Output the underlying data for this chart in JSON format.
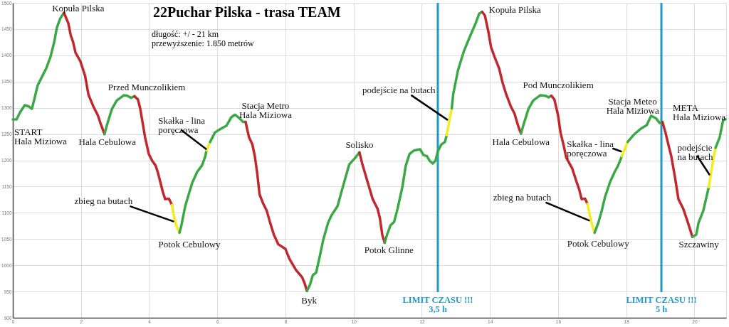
{
  "chart_data": {
    "type": "line",
    "title": "22Puchar Pilska - trasa TEAM",
    "subtitle": "długość: +/ - 21 km\nprzewyższenie: 1.850 metrów",
    "xlim": [
      0,
      20.93
    ],
    "xticks": [
      0,
      2,
      4,
      6,
      8,
      10,
      12,
      14,
      16,
      18,
      20
    ],
    "ylim": [
      900,
      1500
    ],
    "yticks": [
      900,
      950,
      1000,
      1050,
      1100,
      1150,
      1200,
      1250,
      1300,
      1350,
      1400,
      1450,
      1500
    ],
    "grid": true,
    "series": [
      {
        "color": "#3aa845",
        "x": [
          0,
          0.11,
          0.21,
          0.35,
          0.46,
          0.56,
          0.63,
          0.73,
          0.87,
          0.98,
          1.11,
          1.22,
          1.29,
          1.39,
          1.5
        ],
        "values": [
          1278,
          1278,
          1291,
          1305,
          1303,
          1298,
          1316,
          1343,
          1361,
          1375,
          1398,
          1427,
          1452,
          1470,
          1481
        ]
      },
      {
        "color": "#c1272d",
        "x": [
          1.5,
          1.63,
          1.7,
          1.77,
          1.84,
          1.98,
          2.12,
          2.22,
          2.36,
          2.5,
          2.57,
          2.69
        ],
        "values": [
          1481,
          1461,
          1438,
          1425,
          1405,
          1389,
          1361,
          1325,
          1303,
          1285,
          1271,
          1250
        ]
      },
      {
        "color": "#3aa845",
        "x": [
          2.69,
          2.78,
          2.91,
          3.05,
          3.26,
          3.36,
          3.47,
          3.57
        ],
        "values": [
          1250,
          1271,
          1298,
          1314,
          1324,
          1323,
          1319,
          1322
        ]
      },
      {
        "color": "#c1272d",
        "x": [
          3.57,
          3.67,
          3.74,
          3.81,
          3.88,
          3.99,
          4.09,
          4.19,
          4.26,
          4.33,
          4.4,
          4.47,
          4.58,
          4.67
        ],
        "values": [
          1322,
          1316,
          1298,
          1271,
          1244,
          1212,
          1199,
          1190,
          1176,
          1158,
          1140,
          1126,
          1127,
          1115
        ]
      },
      {
        "color": "#f4ec1c",
        "x": [
          4.67,
          4.71,
          4.77,
          4.82,
          4.89
        ],
        "values": [
          1115,
          1099,
          1081,
          1072,
          1062
        ]
      },
      {
        "color": "#3aa845",
        "x": [
          4.89,
          4.94,
          4.99,
          5.06,
          5.16,
          5.27,
          5.41,
          5.55,
          5.65,
          5.68
        ],
        "values": [
          1062,
          1074,
          1090,
          1113,
          1135,
          1158,
          1178,
          1190,
          1208,
          1219
        ]
      },
      {
        "color": "#f4ec1c",
        "x": [
          5.68,
          5.79
        ],
        "values": [
          1219,
          1235
        ]
      },
      {
        "color": "#3aa845",
        "x": [
          5.79,
          5.93,
          6.1,
          6.27,
          6.41,
          6.52,
          6.65,
          6.76,
          6.83
        ],
        "values": [
          1235,
          1253,
          1260,
          1266,
          1282,
          1287,
          1280,
          1273,
          1273
        ]
      },
      {
        "color": "#c1272d",
        "x": [
          6.83,
          6.93,
          7.03,
          7.1,
          7.17,
          7.24,
          7.35,
          7.45,
          7.55,
          7.66,
          7.79,
          8.0,
          8.11,
          8.31,
          8.49,
          8.56,
          8.63
        ],
        "values": [
          1273,
          1244,
          1230,
          1208,
          1176,
          1135,
          1117,
          1104,
          1081,
          1058,
          1040,
          1031,
          1013,
          991,
          977,
          966,
          951
        ]
      },
      {
        "color": "#3aa845",
        "x": [
          8.63,
          8.72,
          8.8,
          8.9,
          9.01,
          9.11,
          9.25,
          9.35,
          9.53,
          9.66,
          9.8,
          9.87,
          10.05,
          10.17
        ],
        "values": [
          951,
          963,
          981,
          986,
          1018,
          1049,
          1081,
          1095,
          1113,
          1144,
          1176,
          1192,
          1205,
          1215
        ]
      },
      {
        "color": "#c1272d",
        "x": [
          10.17,
          10.25,
          10.39,
          10.56,
          10.7,
          10.77,
          10.84,
          10.91
        ],
        "values": [
          1215,
          1194,
          1163,
          1126,
          1108,
          1090,
          1058,
          1043
        ]
      },
      {
        "color": "#3aa845",
        "x": [
          10.91,
          10.98,
          11.08,
          11.19,
          11.29,
          11.43,
          11.53,
          11.64,
          11.78,
          11.95,
          12.05,
          12.15,
          12.23,
          12.32,
          12.4,
          12.47,
          12.57,
          12.68,
          12.73
        ],
        "values": [
          1043,
          1058,
          1076,
          1083,
          1108,
          1149,
          1190,
          1212,
          1219,
          1221,
          1210,
          1208,
          1199,
          1194,
          1199,
          1217,
          1230,
          1235,
          1248
        ]
      },
      {
        "color": "#f4ec1c",
        "x": [
          12.73,
          12.81,
          12.88
        ],
        "values": [
          1248,
          1276,
          1299
        ]
      },
      {
        "color": "#3aa845",
        "x": [
          12.88,
          12.92,
          13.06,
          13.23,
          13.4,
          13.58,
          13.68,
          13.77
        ],
        "values": [
          1299,
          1325,
          1371,
          1407,
          1434,
          1461,
          1479,
          1483
        ]
      },
      {
        "color": "#c1272d",
        "x": [
          13.77,
          13.85,
          13.96,
          14.03,
          14.13,
          14.27,
          14.37,
          14.48,
          14.61,
          14.72,
          14.82,
          14.91
        ],
        "values": [
          1483,
          1476,
          1443,
          1416,
          1398,
          1375,
          1348,
          1325,
          1303,
          1289,
          1267,
          1251
        ]
      },
      {
        "color": "#3aa845",
        "x": [
          14.91,
          15.0,
          15.13,
          15.27,
          15.48,
          15.62,
          15.72,
          15.8
        ],
        "values": [
          1251,
          1271,
          1298,
          1314,
          1324,
          1323,
          1320,
          1323
        ]
      },
      {
        "color": "#c1272d",
        "x": [
          15.8,
          15.89,
          16.0,
          16.07,
          16.17,
          16.24,
          16.41,
          16.52,
          16.62,
          16.69,
          16.79,
          16.86
        ],
        "values": [
          1323,
          1316,
          1285,
          1253,
          1226,
          1205,
          1185,
          1163,
          1144,
          1126,
          1127,
          1117
        ]
      },
      {
        "color": "#f4ec1c",
        "x": [
          16.86,
          16.93,
          17.0,
          17.07
        ],
        "values": [
          1117,
          1095,
          1076,
          1062
        ]
      },
      {
        "color": "#3aa845",
        "x": [
          17.07,
          17.18,
          17.28,
          17.38,
          17.52,
          17.66,
          17.76,
          17.87
        ],
        "values": [
          1062,
          1081,
          1104,
          1131,
          1158,
          1178,
          1190,
          1208
        ]
      },
      {
        "color": "#f4ec1c",
        "x": [
          17.87,
          18.04
        ],
        "values": [
          1208,
          1235
        ]
      },
      {
        "color": "#3aa845",
        "x": [
          18.04,
          18.21,
          18.42,
          18.6,
          18.73,
          18.87,
          18.98,
          19.06
        ],
        "values": [
          1235,
          1248,
          1260,
          1267,
          1285,
          1280,
          1271,
          1273
        ]
      },
      {
        "color": "#c1272d",
        "x": [
          19.06,
          19.15,
          19.25,
          19.32,
          19.42,
          19.53,
          19.67,
          19.81,
          19.94
        ],
        "values": [
          1273,
          1253,
          1226,
          1208,
          1171,
          1126,
          1108,
          1081,
          1054
        ]
      },
      {
        "color": "#3aa845",
        "x": [
          19.94,
          20.05,
          20.12,
          20.26,
          20.42
        ],
        "values": [
          1054,
          1058,
          1081,
          1104,
          1149
        ]
      },
      {
        "color": "#f4ec1c",
        "x": [
          20.42,
          20.5,
          20.57,
          20.62
        ],
        "values": [
          1149,
          1181,
          1208,
          1224
        ]
      },
      {
        "color": "#3aa845",
        "x": [
          20.62,
          20.74,
          20.84,
          20.91
        ],
        "values": [
          1224,
          1244,
          1276,
          1278
        ]
      }
    ],
    "ref_lines": [
      {
        "axis": "x",
        "value": 12.47,
        "label": "LIMIT CZASU !!!\n3,5 h",
        "color": "#1f9ac7"
      },
      {
        "axis": "x",
        "value": 19.03,
        "label": "LIMIT CZASU !!!\n5 h",
        "color": "#1f9ac7"
      }
    ],
    "annotations": [
      {
        "text": "Kopuła Pilska",
        "x": 1.5,
        "y": 1481
      },
      {
        "text": "START\nHala Miziowa",
        "x": 0,
        "y": 1278
      },
      {
        "text": "Hala Cebulowa",
        "x": 2.69,
        "y": 1250
      },
      {
        "text": "Przed Munczolikiem",
        "x": 3.26,
        "y": 1324
      },
      {
        "text": "Skałka - lina\nporęczowa",
        "x": 5.73,
        "y": 1227
      },
      {
        "text": "zbieg na butach",
        "x": 4.77,
        "y": 1081
      },
      {
        "text": "Potok Cebulowy",
        "x": 4.89,
        "y": 1062
      },
      {
        "text": "Stacja Metro\nHala Miziowa",
        "x": 6.83,
        "y": 1273
      },
      {
        "text": "Byk",
        "x": 8.63,
        "y": 951
      },
      {
        "text": "Solisko",
        "x": 10.17,
        "y": 1215
      },
      {
        "text": "Potok Glinne",
        "x": 10.91,
        "y": 1043
      },
      {
        "text": "podejście na butach",
        "x": 12.81,
        "y": 1276
      },
      {
        "text": "Kopuła Pilska",
        "x": 13.77,
        "y": 1483
      },
      {
        "text": "Pod Munczolikiem",
        "x": 15.48,
        "y": 1324
      },
      {
        "text": "Hala Cebulowa",
        "x": 14.91,
        "y": 1251
      },
      {
        "text": "Skałka - lina\nporęczowa",
        "x": 17.95,
        "y": 1221
      },
      {
        "text": "zbieg na butach",
        "x": 16.97,
        "y": 1084
      },
      {
        "text": "Potok Cebulowy",
        "x": 17.07,
        "y": 1062
      },
      {
        "text": "Stacja Meteo\nHala Miziowa",
        "x": 18.73,
        "y": 1285
      },
      {
        "text": "META\nHala Miziowa",
        "x": 20.91,
        "y": 1278
      },
      {
        "text": "podejście\nna butach",
        "x": 20.5,
        "y": 1181
      },
      {
        "text": "Szczawiny",
        "x": 19.94,
        "y": 1054
      }
    ]
  }
}
